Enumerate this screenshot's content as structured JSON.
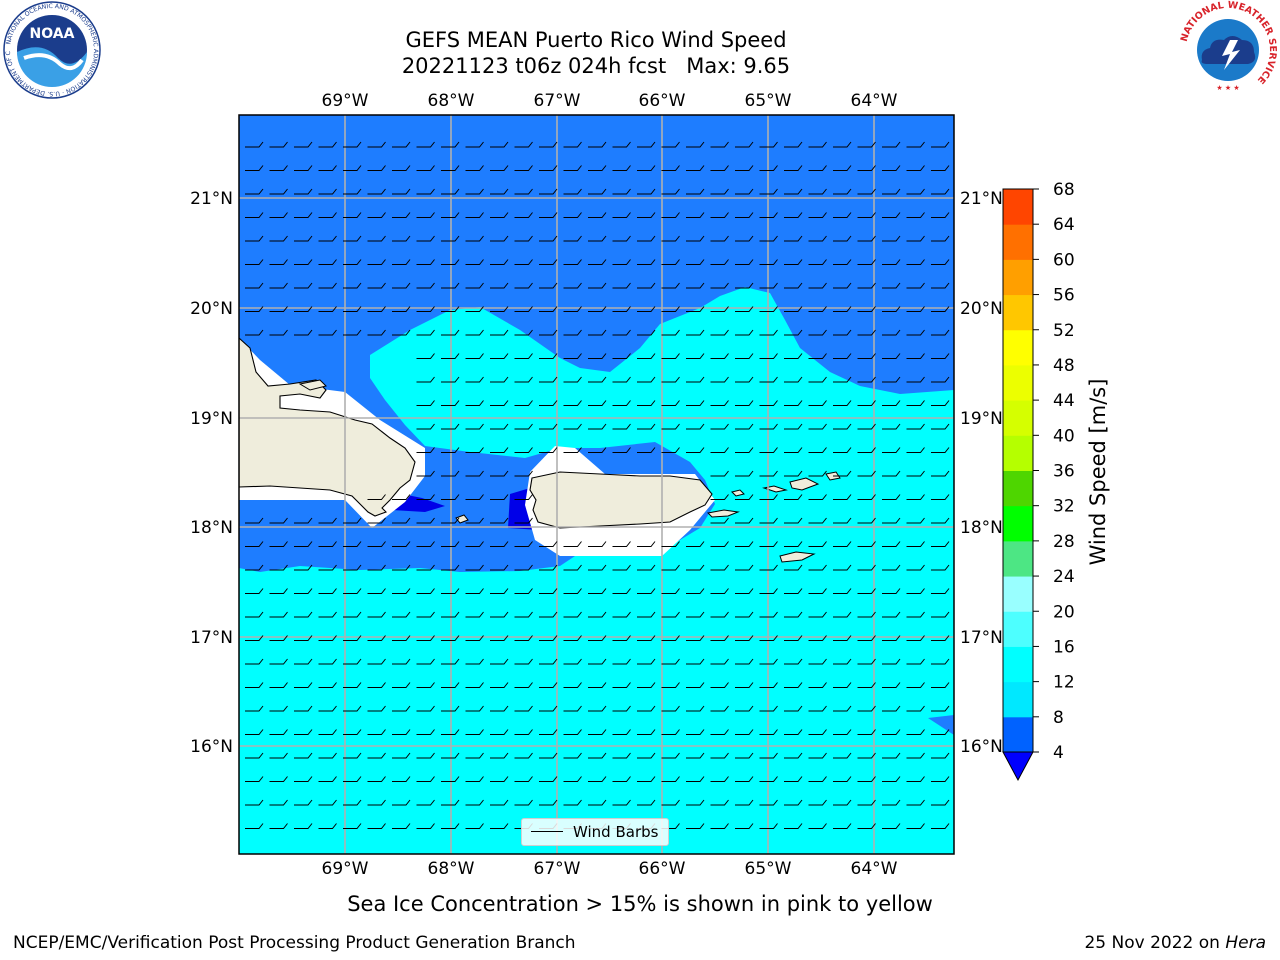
{
  "title_line1": "GEFS MEAN Puerto Rico Wind Speed",
  "title_line2": "20221123 t06z 024h fcst   Max: 9.65",
  "lon_labels": [
    "69°W",
    "68°W",
    "67°W",
    "66°W",
    "65°W",
    "64°W"
  ],
  "lat_labels": [
    "21°N",
    "20°N",
    "19°N",
    "18°N",
    "17°N",
    "16°N"
  ],
  "legend_label": "Wind Barbs",
  "colorbar": {
    "label": "Wind Speed [m/s]",
    "ticks": [
      "4",
      "8",
      "12",
      "16",
      "20",
      "24",
      "28",
      "32",
      "36",
      "40",
      "44",
      "48",
      "52",
      "56",
      "60",
      "64",
      "68"
    ],
    "colors": [
      "#0062ff",
      "#00e8ff",
      "#00ffff",
      "#4dffff",
      "#99ffff",
      "#4de684",
      "#00ff00",
      "#4ed600",
      "#b5ff00",
      "#d5ff00",
      "#ecff00",
      "#ffff00",
      "#ffc700",
      "#ff9f00",
      "#ff7000",
      "#ff4500",
      "#ff0000"
    ],
    "under_color": "#0000ff"
  },
  "colors": {
    "ocean_low": "#1e7dff",
    "ocean_high": "#00ffff",
    "land": "#efeddc",
    "grid": "#b0b0b0"
  },
  "subnote": "Sea Ice Concentration > 15% is shown in pink to yellow",
  "footer_left": "NCEP/EMC/Verification Post Processing Product Generation Branch",
  "footer_right_date": "25 Nov 2022 on",
  "footer_right_host": "Hera",
  "logos": {
    "noaa_text": "NOAA",
    "noaa_ring": "NATIONAL OCEANIC AND ATMOSPHERIC ADMINISTRATION · U.S. DEPARTMENT OF COMMERCE",
    "nws_ring": "NATIONAL WEATHER SERVICE"
  }
}
